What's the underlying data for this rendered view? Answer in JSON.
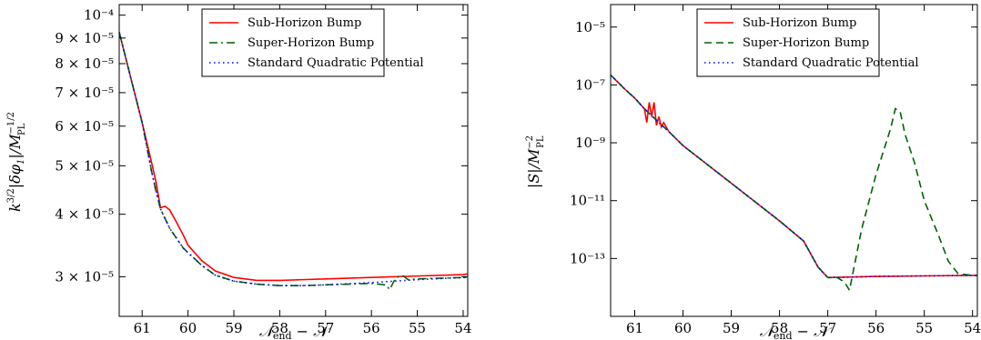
{
  "chart_data": [
    {
      "type": "line",
      "name": "left-panel",
      "xlabel": "𝒩end − 𝒩",
      "ylabel": "k^{3/2}|δφ1|/M_PL^{-1/2}",
      "yscale": "log",
      "xlim": [
        61.5,
        53.9
      ],
      "ylim": [
        2.5e-05,
        0.000105
      ],
      "xticks": [
        61,
        60,
        59,
        58,
        57,
        56,
        55,
        54
      ],
      "yticks": [
        {
          "value": 0.0001,
          "label": "10⁻⁴"
        },
        {
          "value": 9e-05,
          "label": "9 × 10⁻⁵"
        },
        {
          "value": 8e-05,
          "label": "8 × 10⁻⁵"
        },
        {
          "value": 7e-05,
          "label": "7 × 10⁻⁵"
        },
        {
          "value": 6e-05,
          "label": "6 × 10⁻⁵"
        },
        {
          "value": 5e-05,
          "label": "5 × 10⁻⁵"
        },
        {
          "value": 4e-05,
          "label": "4 × 10⁻⁵"
        },
        {
          "value": 3e-05,
          "label": "3 × 10⁻⁵"
        }
      ],
      "legend_position": "top-center",
      "series": [
        {
          "name": "Sub-Horizon Bump",
          "color": "#ff0000",
          "dash": "solid",
          "x": [
            61.5,
            61.2,
            61.0,
            60.8,
            60.7,
            60.6,
            60.5,
            60.4,
            60.3,
            60.1,
            60.0,
            59.7,
            59.4,
            59.0,
            58.5,
            58.0,
            57.5,
            57.0,
            56.0,
            55.0,
            54.0,
            53.9
          ],
          "y": [
            9.25e-05,
            7.2e-05,
            6.1e-05,
            5.1e-05,
            4.65e-05,
            4.12e-05,
            4.15e-05,
            4.08e-05,
            3.93e-05,
            3.63e-05,
            3.47e-05,
            3.23e-05,
            3.08e-05,
            2.99e-05,
            2.95e-05,
            2.95e-05,
            2.96e-05,
            2.97e-05,
            2.99e-05,
            3.01e-05,
            3.03e-05,
            3.04e-05
          ]
        },
        {
          "name": "Super-Horizon Bump",
          "color": "#006400",
          "dash": "dashdot",
          "x": [
            61.5,
            61.2,
            61.0,
            60.8,
            60.7,
            60.6,
            60.4,
            60.1,
            59.7,
            59.4,
            59.0,
            58.5,
            58.0,
            57.5,
            57.0,
            56.5,
            56.0,
            55.7,
            55.6,
            55.5,
            55.4,
            55.3,
            55.2,
            55.0,
            54.5,
            54.0,
            53.9
          ],
          "y": [
            9.25e-05,
            7.2e-05,
            6.1e-05,
            4.9e-05,
            4.45e-05,
            4.1e-05,
            3.75e-05,
            3.42e-05,
            3.16e-05,
            3.02e-05,
            2.94e-05,
            2.9e-05,
            2.88e-05,
            2.88e-05,
            2.89e-05,
            2.9e-05,
            2.91e-05,
            2.89e-05,
            2.83e-05,
            2.95e-05,
            3.01e-05,
            3.01e-05,
            2.96e-05,
            2.97e-05,
            2.98e-05,
            2.99e-05,
            2.99e-05
          ]
        },
        {
          "name": "Standard Quadratic Potential",
          "color": "#0000ff",
          "dash": "dotted",
          "x": [
            61.5,
            61.2,
            61.0,
            60.8,
            60.6,
            60.4,
            60.1,
            59.7,
            59.4,
            59.0,
            58.5,
            58.0,
            57.5,
            57.0,
            56.0,
            55.0,
            54.0,
            53.9
          ],
          "y": [
            9.25e-05,
            7.2e-05,
            6.1e-05,
            4.9e-05,
            4.1e-05,
            3.75e-05,
            3.42e-05,
            3.16e-05,
            3.02e-05,
            2.94e-05,
            2.9e-05,
            2.88e-05,
            2.88e-05,
            2.89e-05,
            2.92e-05,
            2.96e-05,
            2.99e-05,
            2.99e-05
          ]
        }
      ]
    },
    {
      "type": "line",
      "name": "right-panel",
      "xlabel": "𝒩end − 𝒩",
      "ylabel": "|S|/M_PL^{-2}",
      "yscale": "log",
      "xlim": [
        61.5,
        53.9
      ],
      "ylim": [
        1e-15,
        6e-05
      ],
      "xticks": [
        61,
        60,
        59,
        58,
        57,
        56,
        55,
        54
      ],
      "yticks": [
        {
          "value": 1e-05,
          "label": "10⁻⁵"
        },
        {
          "value": 1e-07,
          "label": "10⁻⁷"
        },
        {
          "value": 1e-09,
          "label": "10⁻⁹"
        },
        {
          "value": 1e-11,
          "label": "10⁻¹¹"
        },
        {
          "value": 1e-13,
          "label": "10⁻¹³"
        }
      ],
      "legend_position": "top-center",
      "series": [
        {
          "name": "Sub-Horizon Bump",
          "color": "#ff0000",
          "dash": "solid",
          "x": [
            61.5,
            61.2,
            61.0,
            60.8,
            60.75,
            60.7,
            60.65,
            60.6,
            60.55,
            60.5,
            60.45,
            60.4,
            60.3,
            60.0,
            59.0,
            58.0,
            57.5,
            57.2,
            57.0,
            56.5,
            56.0,
            55.0,
            54.0,
            53.9
          ],
          "y": [
            2.2e-07,
            7e-08,
            3.5e-08,
            1.5e-08,
            5e-09,
            2.5e-08,
            8e-09,
            2.5e-08,
            4e-09,
            8e-09,
            3.5e-09,
            5e-09,
            2.5e-09,
            8e-10,
            4e-11,
            2e-12,
            4e-13,
            5e-14,
            2.2e-14,
            2.3e-14,
            2.4e-14,
            2.5e-14,
            2.6e-14,
            2.6e-14
          ]
        },
        {
          "name": "Super-Horizon Bump",
          "color": "#006400",
          "dash": "dashed",
          "x": [
            61.5,
            61.2,
            61.0,
            60.8,
            60.5,
            60.3,
            60.0,
            59.0,
            58.0,
            57.5,
            57.2,
            57.0,
            56.8,
            56.65,
            56.55,
            56.3,
            56.0,
            55.7,
            55.6,
            55.5,
            55.4,
            55.2,
            55.0,
            54.7,
            54.5,
            54.3,
            54.0,
            53.9
          ],
          "y": [
            2.2e-07,
            7e-08,
            3.5e-08,
            1.5e-08,
            5e-09,
            2.5e-09,
            8e-10,
            4e-11,
            2e-12,
            4e-13,
            5e-14,
            2.2e-14,
            2.2e-14,
            1.5e-14,
            8e-15,
            1e-12,
            8e-11,
            3e-09,
            1.5e-08,
            1.2e-08,
            2e-09,
            2e-10,
            1e-11,
            6e-13,
            8e-14,
            3e-14,
            2.6e-14,
            2.6e-14
          ]
        },
        {
          "name": "Standard Quadratic Potential",
          "color": "#0000ff",
          "dash": "dotted",
          "x": [
            61.5,
            61.2,
            61.0,
            60.8,
            60.5,
            60.3,
            60.0,
            59.0,
            58.0,
            57.5,
            57.2,
            57.0,
            56.5,
            56.0,
            55.0,
            54.0,
            53.9
          ],
          "y": [
            2.2e-07,
            7e-08,
            3.5e-08,
            1.5e-08,
            5e-09,
            2.5e-09,
            8e-10,
            4e-11,
            2e-12,
            4e-13,
            5e-14,
            2.2e-14,
            2.3e-14,
            2.4e-14,
            2.5e-14,
            2.6e-14,
            2.6e-14
          ]
        }
      ]
    }
  ]
}
